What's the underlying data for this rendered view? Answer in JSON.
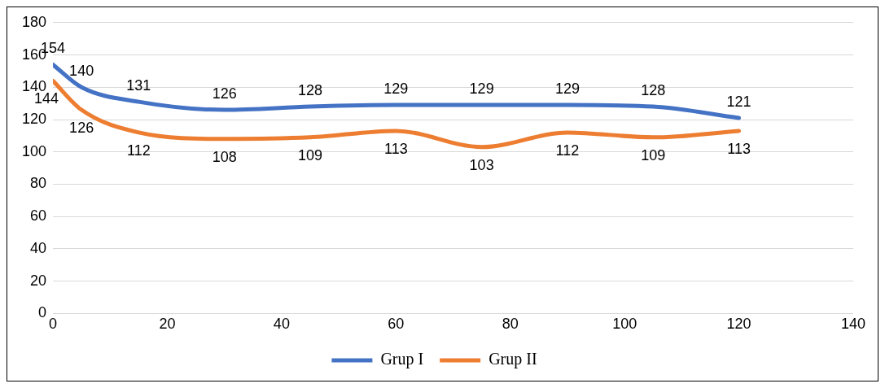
{
  "chart_data": {
    "type": "line",
    "x": [
      0,
      5,
      15,
      30,
      45,
      60,
      75,
      90,
      105,
      120
    ],
    "series": [
      {
        "name": "Grup I",
        "color": "#4472c4",
        "values": [
          154,
          140,
          131,
          126,
          128,
          129,
          129,
          129,
          128,
          121
        ]
      },
      {
        "name": "Grup II",
        "color": "#ed7d31",
        "values": [
          144,
          126,
          112,
          108,
          109,
          113,
          103,
          112,
          109,
          113
        ]
      }
    ],
    "xlim": [
      0,
      140
    ],
    "xticks": [
      0,
      20,
      40,
      60,
      80,
      100,
      120,
      140
    ],
    "ylim": [
      0,
      180
    ],
    "yticks": [
      0,
      20,
      40,
      60,
      80,
      100,
      120,
      140,
      160,
      180
    ],
    "grid": "y",
    "legend": "bottom",
    "marker": "none",
    "line_style": "solid",
    "data_labels": true
  }
}
